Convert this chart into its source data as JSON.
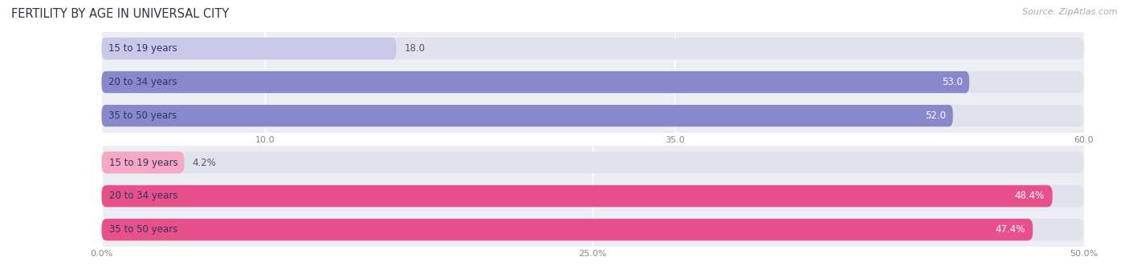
{
  "title": "FERTILITY BY AGE IN UNIVERSAL CITY",
  "source": "Source: ZipAtlas.com",
  "top_chart": {
    "categories": [
      "15 to 19 years",
      "20 to 34 years",
      "35 to 50 years"
    ],
    "values": [
      18.0,
      53.0,
      52.0
    ],
    "xmax": 60.0,
    "xticks": [
      10.0,
      35.0,
      60.0
    ],
    "xtick_labels": [
      "10.0",
      "35.0",
      "60.0"
    ],
    "bar_color_full": "#8888cc",
    "bar_color_light": "#c8c8e8",
    "value_labels": [
      "18.0",
      "53.0",
      "52.0"
    ]
  },
  "bottom_chart": {
    "categories": [
      "15 to 19 years",
      "20 to 34 years",
      "35 to 50 years"
    ],
    "values": [
      4.2,
      48.4,
      47.4
    ],
    "xmax": 50.0,
    "xticks": [
      0.0,
      25.0,
      50.0
    ],
    "xtick_labels": [
      "0.0%",
      "25.0%",
      "50.0%"
    ],
    "bar_color_full": "#e8508a",
    "bar_color_light": "#f4a8c4",
    "value_labels": [
      "4.2%",
      "48.4%",
      "47.4%"
    ]
  },
  "bg_color": "#ededf4",
  "bar_bg_color": "#e2e2ee",
  "label_fontsize": 8.5,
  "title_fontsize": 10.5,
  "source_fontsize": 8.0
}
